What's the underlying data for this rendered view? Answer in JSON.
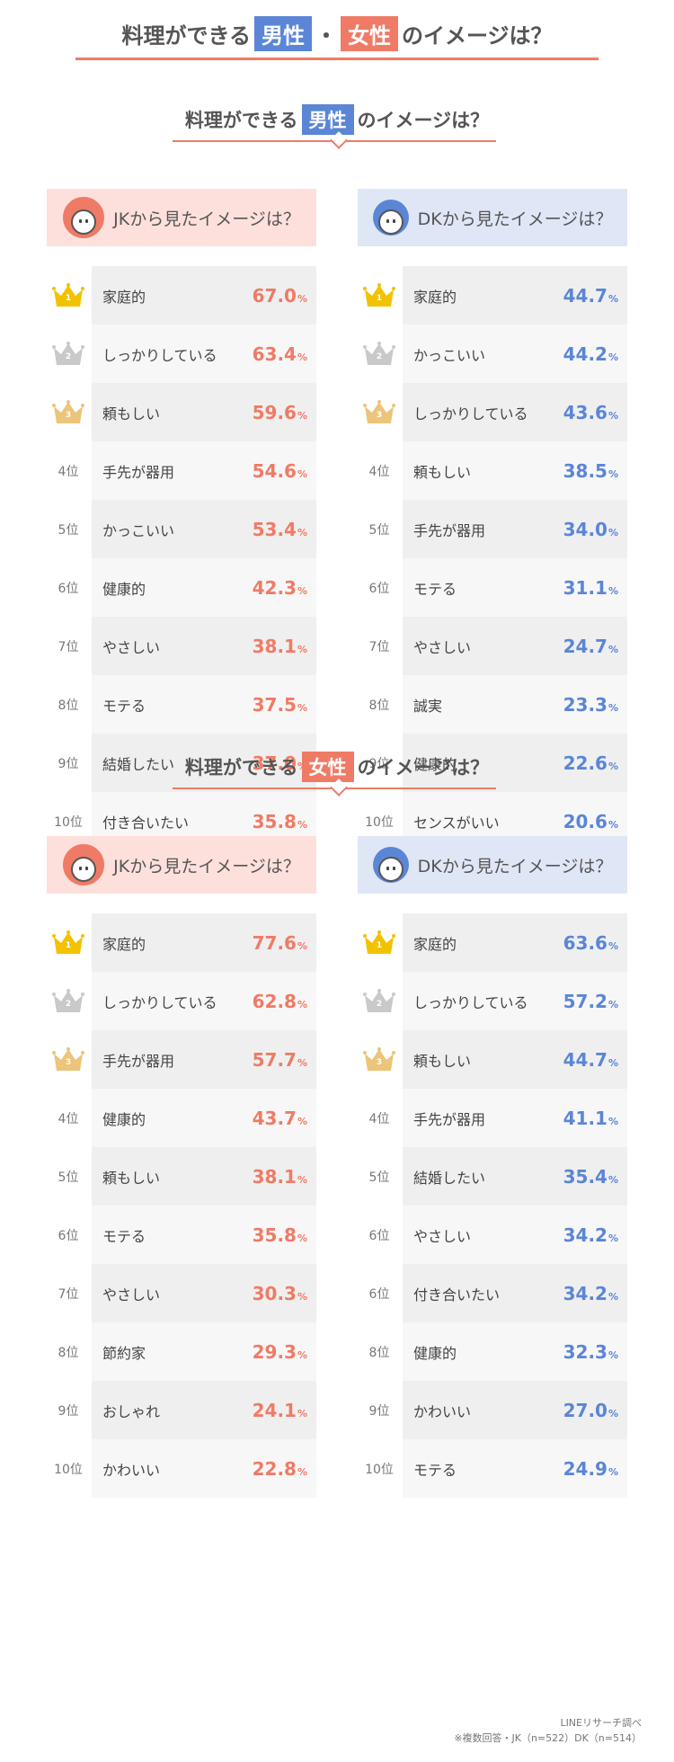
{
  "title": {
    "prefix": "料理ができる",
    "male": "男性",
    "separator": "・",
    "female": "女性",
    "suffix": "のイメージは？"
  },
  "colors": {
    "red": "#ef7b66",
    "blue": "#5b86d6",
    "gold": "#f2c200",
    "silver": "#c9c9c9",
    "bronze": "#ecc47a"
  },
  "sections": [
    {
      "title_prefix": "料理ができる",
      "tag": "男性",
      "title_suffix": "のイメージは？",
      "columns": [
        {
          "header": "JKから見たイメージは？",
          "avatar": "girl-avatar",
          "unit": "%",
          "rows": [
            {
              "rank": "1",
              "label": "家庭的",
              "value": "67.0"
            },
            {
              "rank": "2",
              "label": "しっかりしている",
              "value": "63.4"
            },
            {
              "rank": "3",
              "label": "頼もしい",
              "value": "59.6"
            },
            {
              "rank": "4位",
              "label": "手先が器用",
              "value": "54.6"
            },
            {
              "rank": "5位",
              "label": "かっこいい",
              "value": "53.4"
            },
            {
              "rank": "6位",
              "label": "健康的",
              "value": "42.3"
            },
            {
              "rank": "7位",
              "label": "やさしい",
              "value": "38.1"
            },
            {
              "rank": "8位",
              "label": "モテる",
              "value": "37.5"
            },
            {
              "rank": "9位",
              "label": "結婚したい",
              "value": "37.0"
            },
            {
              "rank": "10位",
              "label": "付き合いたい",
              "value": "35.8"
            }
          ]
        },
        {
          "header": "DKから見たイメージは？",
          "avatar": "boy-avatar",
          "unit": "%",
          "rows": [
            {
              "rank": "1",
              "label": "家庭的",
              "value": "44.7"
            },
            {
              "rank": "2",
              "label": "かっこいい",
              "value": "44.2"
            },
            {
              "rank": "3",
              "label": "しっかりしている",
              "value": "43.6"
            },
            {
              "rank": "4位",
              "label": "頼もしい",
              "value": "38.5"
            },
            {
              "rank": "5位",
              "label": "手先が器用",
              "value": "34.0"
            },
            {
              "rank": "6位",
              "label": "モテる",
              "value": "31.1"
            },
            {
              "rank": "7位",
              "label": "やさしい",
              "value": "24.7"
            },
            {
              "rank": "8位",
              "label": "誠実",
              "value": "23.3"
            },
            {
              "rank": "9位",
              "label": "健康的",
              "value": "22.6"
            },
            {
              "rank": "10位",
              "label": "センスがいい",
              "value": "20.6"
            }
          ]
        }
      ]
    },
    {
      "title_prefix": "料理ができる",
      "tag": "女性",
      "title_suffix": "のイメージは？",
      "columns": [
        {
          "header": "JKから見たイメージは？",
          "avatar": "girl-avatar",
          "unit": "%",
          "rows": [
            {
              "rank": "1",
              "label": "家庭的",
              "value": "77.6"
            },
            {
              "rank": "2",
              "label": "しっかりしている",
              "value": "62.8"
            },
            {
              "rank": "3",
              "label": "手先が器用",
              "value": "57.7"
            },
            {
              "rank": "4位",
              "label": "健康的",
              "value": "43.7"
            },
            {
              "rank": "5位",
              "label": "頼もしい",
              "value": "38.1"
            },
            {
              "rank": "6位",
              "label": "モテる",
              "value": "35.8"
            },
            {
              "rank": "7位",
              "label": "やさしい",
              "value": "30.3"
            },
            {
              "rank": "8位",
              "label": "節約家",
              "value": "29.3"
            },
            {
              "rank": "9位",
              "label": "おしゃれ",
              "value": "24.1"
            },
            {
              "rank": "10位",
              "label": "かわいい",
              "value": "22.8"
            }
          ]
        },
        {
          "header": "DKから見たイメージは？",
          "avatar": "boy-avatar",
          "unit": "%",
          "rows": [
            {
              "rank": "1",
              "label": "家庭的",
              "value": "63.6"
            },
            {
              "rank": "2",
              "label": "しっかりしている",
              "value": "57.2"
            },
            {
              "rank": "3",
              "label": "頼もしい",
              "value": "44.7"
            },
            {
              "rank": "4位",
              "label": "手先が器用",
              "value": "41.1"
            },
            {
              "rank": "5位",
              "label": "結婚したい",
              "value": "35.4"
            },
            {
              "rank": "6位",
              "label": "やさしい",
              "value": "34.2"
            },
            {
              "rank": "6位",
              "label": "付き合いたい",
              "value": "34.2"
            },
            {
              "rank": "8位",
              "label": "健康的",
              "value": "32.3"
            },
            {
              "rank": "9位",
              "label": "かわいい",
              "value": "27.0"
            },
            {
              "rank": "10位",
              "label": "モテる",
              "value": "24.9"
            }
          ]
        }
      ]
    }
  ],
  "footer": {
    "source": "LINEリサーチ調べ",
    "note": "※複数回答・JK（n=522）DK（n=514）"
  },
  "chart_data": [
    {
      "type": "table",
      "title": "料理ができる男性のイメージは？ — JKから見たイメージは？",
      "categories": [
        "家庭的",
        "しっかりしている",
        "頼もしい",
        "手先が器用",
        "かっこいい",
        "健康的",
        "やさしい",
        "モテる",
        "結婚したい",
        "付き合いたい"
      ],
      "values": [
        67.0,
        63.4,
        59.6,
        54.6,
        53.4,
        42.3,
        38.1,
        37.5,
        37.0,
        35.8
      ]
    },
    {
      "type": "table",
      "title": "料理ができる男性のイメージは？ — DKから見たイメージは？",
      "categories": [
        "家庭的",
        "かっこいい",
        "しっかりしている",
        "頼もしい",
        "手先が器用",
        "モテる",
        "やさしい",
        "誠実",
        "健康的",
        "センスがいい"
      ],
      "values": [
        44.7,
        44.2,
        43.6,
        38.5,
        34.0,
        31.1,
        24.7,
        23.3,
        22.6,
        20.6
      ]
    },
    {
      "type": "table",
      "title": "料理ができる女性のイメージは？ — JKから見たイメージは？",
      "categories": [
        "家庭的",
        "しっかりしている",
        "手先が器用",
        "健康的",
        "頼もしい",
        "モテる",
        "やさしい",
        "節約家",
        "おしゃれ",
        "かわいい"
      ],
      "values": [
        77.6,
        62.8,
        57.7,
        43.7,
        38.1,
        35.8,
        30.3,
        29.3,
        24.1,
        22.8
      ]
    },
    {
      "type": "table",
      "title": "料理ができる女性のイメージは？ — DKから見たイメージは？",
      "categories": [
        "家庭的",
        "しっかりしている",
        "頼もしい",
        "手先が器用",
        "結婚したい",
        "やさしい",
        "付き合いたい",
        "健康的",
        "かわいい",
        "モテる"
      ],
      "values": [
        63.6,
        57.2,
        44.7,
        41.1,
        35.4,
        34.2,
        34.2,
        32.3,
        27.0,
        24.9
      ]
    }
  ]
}
